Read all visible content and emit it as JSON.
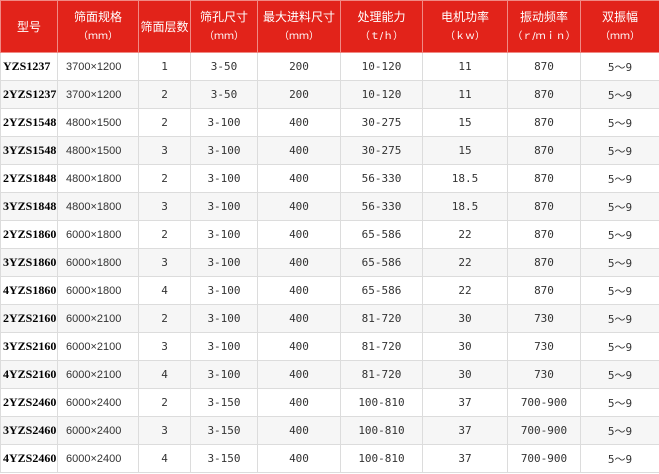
{
  "table": {
    "headers": [
      {
        "title": "型号"
      },
      {
        "title": "筛面规格",
        "unit": "（ｍｍ）"
      },
      {
        "title": "筛面层数"
      },
      {
        "title": "筛孔尺寸",
        "unit": "（ｍｍ）"
      },
      {
        "title": "最大进料尺寸",
        "unit": "（ｍｍ）"
      },
      {
        "title": "处理能力",
        "unit": "（ｔ/ｈ）"
      },
      {
        "title": "电机功率",
        "unit": "（ｋｗ）"
      },
      {
        "title": "振动频率",
        "unit": "（ｒ/ｍｉｎ）"
      },
      {
        "title": "双振幅",
        "unit": "（ｍｍ）"
      }
    ],
    "rows": [
      [
        "YZS1237",
        "3700×1200",
        "1",
        "3-50",
        "200",
        "10-120",
        "11",
        "870",
        "5～9"
      ],
      [
        "2YZS1237",
        "3700×1200",
        "2",
        "3-50",
        "200",
        "10-120",
        "11",
        "870",
        "5～9"
      ],
      [
        "2YZS1548",
        "4800×1500",
        "2",
        "3-100",
        "400",
        "30-275",
        "15",
        "870",
        "5～9"
      ],
      [
        "3YZS1548",
        "4800×1500",
        "3",
        "3-100",
        "400",
        "30-275",
        "15",
        "870",
        "5～9"
      ],
      [
        "2YZS1848",
        "4800×1800",
        "2",
        "3-100",
        "400",
        "56-330",
        "18.5",
        "870",
        "5～9"
      ],
      [
        "3YZS1848",
        "4800×1800",
        "3",
        "3-100",
        "400",
        "56-330",
        "18.5",
        "870",
        "5～9"
      ],
      [
        "2YZS1860",
        "6000×1800",
        "2",
        "3-100",
        "400",
        "65-586",
        "22",
        "870",
        "5～9"
      ],
      [
        "3YZS1860",
        "6000×1800",
        "3",
        "3-100",
        "400",
        "65-586",
        "22",
        "870",
        "5～9"
      ],
      [
        "4YZS1860",
        "6000×1800",
        "4",
        "3-100",
        "400",
        "65-586",
        "22",
        "870",
        "5～9"
      ],
      [
        "2YZS2160",
        "6000×2100",
        "2",
        "3-100",
        "400",
        "81-720",
        "30",
        "730",
        "5～9"
      ],
      [
        "3YZS2160",
        "6000×2100",
        "3",
        "3-100",
        "400",
        "81-720",
        "30",
        "730",
        "5～9"
      ],
      [
        "4YZS2160",
        "6000×2100",
        "4",
        "3-100",
        "400",
        "81-720",
        "30",
        "730",
        "5～9"
      ],
      [
        "2YZS2460",
        "6000×2400",
        "2",
        "3-150",
        "400",
        "100-810",
        "37",
        "700-900",
        "5～9"
      ],
      [
        "3YZS2460",
        "6000×2400",
        "3",
        "3-150",
        "400",
        "100-810",
        "37",
        "700-900",
        "5～9"
      ],
      [
        "4YZS2460",
        "6000×2400",
        "4",
        "3-150",
        "400",
        "100-810",
        "37",
        "700-900",
        "5～9"
      ]
    ]
  }
}
